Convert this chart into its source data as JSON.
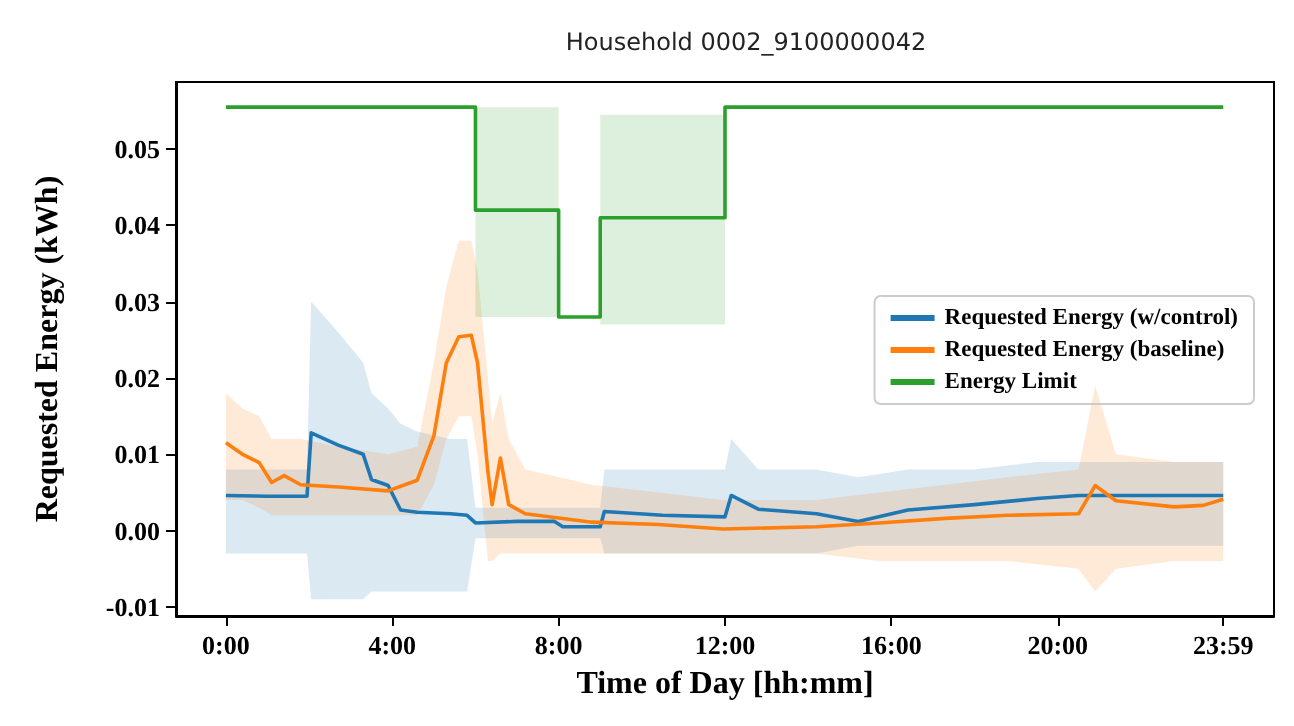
{
  "chart_data": {
    "type": "line",
    "title": "Household 0002_9100000042",
    "xlabel": "Time of Day [hh:mm]",
    "ylabel": "Requested Energy (kWh)",
    "xlim": [
      -1.2,
      25.2
    ],
    "ylim": [
      -0.0112,
      0.0588
    ],
    "xticks": [
      {
        "value": 0,
        "label": "0:00"
      },
      {
        "value": 4,
        "label": "4:00"
      },
      {
        "value": 8,
        "label": "8:00"
      },
      {
        "value": 12,
        "label": "12:00"
      },
      {
        "value": 16,
        "label": "16:00"
      },
      {
        "value": 20,
        "label": "20:00"
      },
      {
        "value": 23.98,
        "label": "23:59"
      }
    ],
    "yticks": [
      {
        "value": -0.01,
        "label": "-0.01"
      },
      {
        "value": 0,
        "label": "0.00"
      },
      {
        "value": 0.01,
        "label": "0.01"
      },
      {
        "value": 0.02,
        "label": "0.02"
      },
      {
        "value": 0.03,
        "label": "0.03"
      },
      {
        "value": 0.04,
        "label": "0.04"
      },
      {
        "value": 0.05,
        "label": "0.05"
      }
    ],
    "legend": "right",
    "series": [
      {
        "name": "Requested Energy (w/control)",
        "color": "#1f77b4",
        "x": [
          0,
          1,
          1.95,
          2.05,
          2.7,
          3.3,
          3.5,
          3.9,
          4.2,
          4.6,
          5.4,
          5.8,
          6.0,
          7.0,
          7.9,
          8.1,
          9.0,
          9.1,
          10.5,
          12.0,
          12.15,
          12.8,
          14.2,
          15.2,
          16.4,
          18.0,
          19.5,
          20.5,
          21.7,
          23.98
        ],
        "values": [
          0.0046,
          0.0045,
          0.0045,
          0.0128,
          0.0112,
          0.01,
          0.0067,
          0.0059,
          0.0027,
          0.0024,
          0.0022,
          0.002,
          0.001,
          0.0012,
          0.0012,
          0.0005,
          0.0005,
          0.0025,
          0.002,
          0.0018,
          0.0046,
          0.0028,
          0.0022,
          0.0012,
          0.0027,
          0.0034,
          0.0042,
          0.0046,
          0.0046,
          0.0046
        ],
        "lower": [
          -0.003,
          -0.003,
          -0.003,
          -0.009,
          -0.009,
          -0.009,
          -0.008,
          -0.008,
          -0.008,
          -0.008,
          -0.008,
          -0.008,
          -0.001,
          -0.001,
          -0.001,
          -0.001,
          -0.001,
          -0.003,
          -0.003,
          -0.003,
          -0.003,
          -0.003,
          -0.003,
          -0.002,
          -0.002,
          -0.002,
          -0.002,
          -0.002,
          -0.002,
          -0.002
        ],
        "upper": [
          0.008,
          0.008,
          0.008,
          0.03,
          0.026,
          0.022,
          0.018,
          0.016,
          0.014,
          0.013,
          0.012,
          0.012,
          0.003,
          0.003,
          0.003,
          0.003,
          0.003,
          0.008,
          0.008,
          0.008,
          0.012,
          0.008,
          0.008,
          0.007,
          0.008,
          0.008,
          0.009,
          0.009,
          0.009,
          0.009
        ]
      },
      {
        "name": "Requested Energy (baseline)",
        "color": "#ff7f0e",
        "x": [
          0,
          0.4,
          0.8,
          1.1,
          1.4,
          1.8,
          2.7,
          3.9,
          4.6,
          5.0,
          5.3,
          5.6,
          5.9,
          6.05,
          6.3,
          6.4,
          6.6,
          6.8,
          7.2,
          8.8,
          10.4,
          11.95,
          14.2,
          15.7,
          17.3,
          18.8,
          20.5,
          20.9,
          21.4,
          22.8,
          23.5,
          23.98
        ],
        "values": [
          0.0115,
          0.01,
          0.0089,
          0.0063,
          0.0072,
          0.006,
          0.0057,
          0.0052,
          0.0066,
          0.0124,
          0.022,
          0.0254,
          0.0256,
          0.022,
          0.0077,
          0.0034,
          0.0095,
          0.0034,
          0.0022,
          0.0011,
          0.0008,
          0.0002,
          0.0005,
          0.001,
          0.0016,
          0.002,
          0.0022,
          0.0059,
          0.0039,
          0.0031,
          0.0033,
          0.0041
        ],
        "lower": [
          0.004,
          0.004,
          0.003,
          0.002,
          0.002,
          0.002,
          0.002,
          0.002,
          0.002,
          0.006,
          0.012,
          0.015,
          0.015,
          0.01,
          -0.004,
          -0.004,
          -0.003,
          -0.003,
          -0.003,
          -0.003,
          -0.003,
          -0.003,
          -0.003,
          -0.004,
          -0.004,
          -0.004,
          -0.005,
          -0.008,
          -0.005,
          -0.004,
          -0.004,
          -0.004
        ],
        "upper": [
          0.018,
          0.016,
          0.015,
          0.012,
          0.012,
          0.012,
          0.011,
          0.01,
          0.011,
          0.022,
          0.032,
          0.038,
          0.038,
          0.034,
          0.02,
          0.014,
          0.018,
          0.012,
          0.008,
          0.006,
          0.005,
          0.004,
          0.004,
          0.005,
          0.006,
          0.007,
          0.008,
          0.019,
          0.01,
          0.009,
          0.009,
          0.009
        ]
      },
      {
        "name": "Energy Limit",
        "color": "#2ca02c",
        "x": [
          0,
          6,
          6,
          8,
          8,
          9,
          9,
          12,
          12,
          23.98
        ],
        "values": [
          0.0555,
          0.0555,
          0.042,
          0.042,
          0.028,
          0.028,
          0.041,
          0.041,
          0.0555,
          0.0555
        ],
        "lower": [
          null,
          null,
          0.028,
          0.028,
          null,
          null,
          0.027,
          0.027,
          null,
          null
        ],
        "upper": [
          null,
          null,
          0.0555,
          0.0555,
          null,
          null,
          0.0545,
          0.0545,
          null,
          null
        ]
      }
    ]
  }
}
